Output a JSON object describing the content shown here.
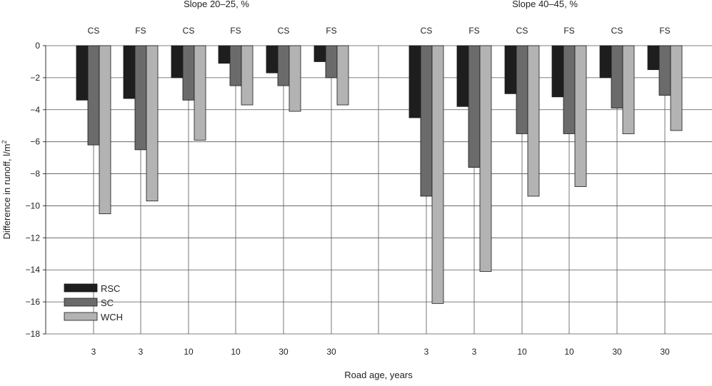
{
  "chart_data": {
    "type": "bar",
    "panel_titles": [
      "Slope 20–25, %",
      "Slope 40–45, %"
    ],
    "ylabel": "Difference in runoff, l/m",
    "ylabel_superscript": "2",
    "xlabel": "Road age, years",
    "ylim": [
      -18,
      0
    ],
    "yticks": [
      0,
      -2,
      -4,
      -6,
      -8,
      -10,
      -12,
      -14,
      -16,
      -18
    ],
    "grid": true,
    "legend_position": "bottom-left",
    "colors": {
      "RSC": "#1e1e1e",
      "SC": "#6b6b6b",
      "WCH": "#b3b3b3"
    },
    "groups": [
      {
        "panel": 0,
        "surface": "CS",
        "age": "3",
        "values": {
          "RSC": -3.4,
          "SC": -6.2,
          "WCH": -10.5
        }
      },
      {
        "panel": 0,
        "surface": "FS",
        "age": "3",
        "values": {
          "RSC": -3.3,
          "SC": -6.5,
          "WCH": -9.7
        }
      },
      {
        "panel": 0,
        "surface": "CS",
        "age": "10",
        "values": {
          "RSC": -2.0,
          "SC": -3.4,
          "WCH": -5.9
        }
      },
      {
        "panel": 0,
        "surface": "FS",
        "age": "10",
        "values": {
          "RSC": -1.1,
          "SC": -2.5,
          "WCH": -3.7
        }
      },
      {
        "panel": 0,
        "surface": "CS",
        "age": "30",
        "values": {
          "RSC": -1.7,
          "SC": -2.5,
          "WCH": -4.1
        }
      },
      {
        "panel": 0,
        "surface": "FS",
        "age": "30",
        "values": {
          "RSC": -1.0,
          "SC": -2.0,
          "WCH": -3.7
        }
      },
      {
        "panel": 1,
        "surface": "CS",
        "age": "3",
        "values": {
          "RSC": -4.5,
          "SC": -9.4,
          "WCH": -16.1
        }
      },
      {
        "panel": 1,
        "surface": "FS",
        "age": "3",
        "values": {
          "RSC": -3.8,
          "SC": -7.6,
          "WCH": -14.1
        }
      },
      {
        "panel": 1,
        "surface": "CS",
        "age": "10",
        "values": {
          "RSC": -3.0,
          "SC": -5.5,
          "WCH": -9.4
        }
      },
      {
        "panel": 1,
        "surface": "FS",
        "age": "10",
        "values": {
          "RSC": -3.2,
          "SC": -5.5,
          "WCH": -8.8
        }
      },
      {
        "panel": 1,
        "surface": "CS",
        "age": "30",
        "values": {
          "RSC": -2.0,
          "SC": -3.9,
          "WCH": -5.5
        }
      },
      {
        "panel": 1,
        "surface": "FS",
        "age": "30",
        "values": {
          "RSC": -1.5,
          "SC": -3.1,
          "WCH": -5.3
        }
      }
    ],
    "series": [
      {
        "name": "RSC"
      },
      {
        "name": "SC"
      },
      {
        "name": "WCH"
      }
    ]
  }
}
